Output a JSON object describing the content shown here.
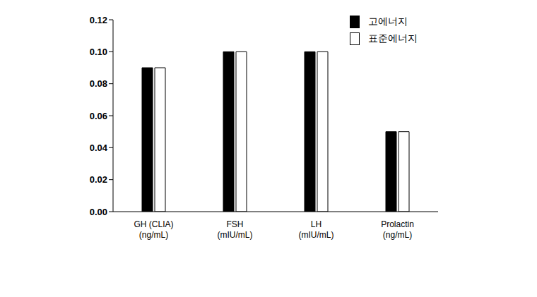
{
  "chart_data": {
    "type": "bar",
    "categories": [
      "GH (CLIA)\n(ng/mL)",
      "FSH\n(mIU/mL)",
      "LH\n(mIU/mL)",
      "Prolactin\n(ng/mL)"
    ],
    "series": [
      {
        "name": "고에너지",
        "color": "#000000",
        "values": [
          0.09,
          0.1,
          0.1,
          0.05
        ]
      },
      {
        "name": "표준에너지",
        "color": "#ffffff",
        "values": [
          0.09,
          0.1,
          0.1,
          0.05
        ]
      }
    ],
    "ylim": [
      0,
      0.12
    ],
    "yticks": [
      {
        "value": 0,
        "label": "0.00"
      },
      {
        "value": 0.02,
        "label": "0.02"
      },
      {
        "value": 0.04,
        "label": "0.04"
      },
      {
        "value": 0.06,
        "label": "0.06"
      },
      {
        "value": 0.08,
        "label": "0.08"
      },
      {
        "value": 0.1,
        "label": "0.10"
      },
      {
        "value": 0.12,
        "label": "0.12"
      }
    ],
    "grid": false,
    "legend": "upper right"
  }
}
